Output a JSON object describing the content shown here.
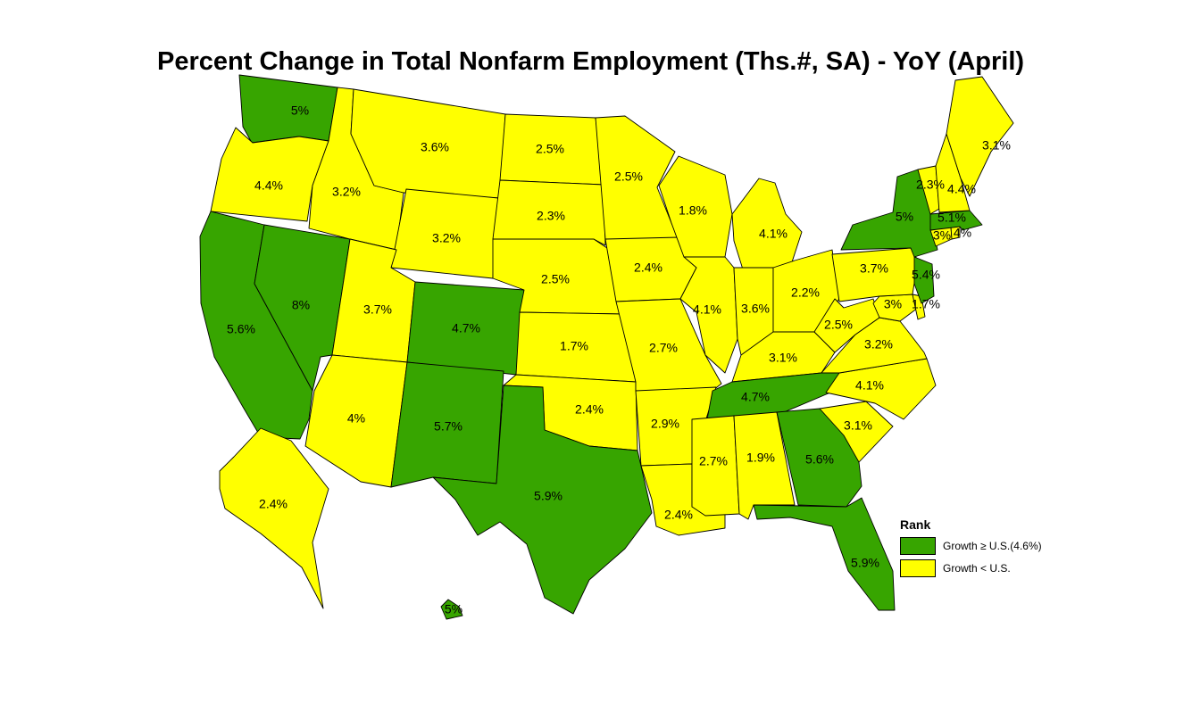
{
  "title": "Percent Change in Total Nonfarm Employment (Ths.#, SA) - YoY (April)",
  "colors": {
    "above": "#37A500",
    "below": "#FFFF00",
    "border": "#000000"
  },
  "legend": {
    "title": "Rank",
    "items": [
      {
        "label": "Growth ≥ U.S.(4.6%)",
        "class": "above"
      },
      {
        "label": "Growth < U.S.",
        "class": "below"
      }
    ]
  },
  "states": [
    {
      "id": "WA",
      "value": "5%",
      "class": "above"
    },
    {
      "id": "OR",
      "value": "4.4%",
      "class": "below"
    },
    {
      "id": "CA",
      "value": "5.6%",
      "class": "above"
    },
    {
      "id": "NV",
      "value": "8%",
      "class": "above"
    },
    {
      "id": "ID",
      "value": "3.2%",
      "class": "below"
    },
    {
      "id": "MT",
      "value": "3.6%",
      "class": "below"
    },
    {
      "id": "WY",
      "value": "3.2%",
      "class": "below"
    },
    {
      "id": "UT",
      "value": "3.7%",
      "class": "below"
    },
    {
      "id": "AZ",
      "value": "4%",
      "class": "below"
    },
    {
      "id": "CO",
      "value": "4.7%",
      "class": "above"
    },
    {
      "id": "NM",
      "value": "5.7%",
      "class": "above"
    },
    {
      "id": "ND",
      "value": "2.5%",
      "class": "below"
    },
    {
      "id": "SD",
      "value": "2.3%",
      "class": "below"
    },
    {
      "id": "NE",
      "value": "2.5%",
      "class": "below"
    },
    {
      "id": "KS",
      "value": "1.7%",
      "class": "below"
    },
    {
      "id": "OK",
      "value": "2.4%",
      "class": "below"
    },
    {
      "id": "TX",
      "value": "5.9%",
      "class": "above"
    },
    {
      "id": "MN",
      "value": "2.5%",
      "class": "below"
    },
    {
      "id": "IA",
      "value": "2.4%",
      "class": "below"
    },
    {
      "id": "MO",
      "value": "2.7%",
      "class": "below"
    },
    {
      "id": "AR",
      "value": "2.9%",
      "class": "below"
    },
    {
      "id": "LA",
      "value": "2.4%",
      "class": "below"
    },
    {
      "id": "WI",
      "value": "1.8%",
      "class": "below"
    },
    {
      "id": "IL",
      "value": "4.1%",
      "class": "below"
    },
    {
      "id": "MI",
      "value": "4.1%",
      "class": "below"
    },
    {
      "id": "IN",
      "value": "3.6%",
      "class": "below"
    },
    {
      "id": "OH",
      "value": "2.2%",
      "class": "below"
    },
    {
      "id": "KY",
      "value": "3.1%",
      "class": "below"
    },
    {
      "id": "TN",
      "value": "4.7%",
      "class": "above"
    },
    {
      "id": "MS",
      "value": "2.7%",
      "class": "below"
    },
    {
      "id": "AL",
      "value": "1.9%",
      "class": "below"
    },
    {
      "id": "GA",
      "value": "5.6%",
      "class": "above"
    },
    {
      "id": "FL",
      "value": "5.9%",
      "class": "above"
    },
    {
      "id": "SC",
      "value": "3.1%",
      "class": "below"
    },
    {
      "id": "NC",
      "value": "4.1%",
      "class": "below"
    },
    {
      "id": "VA",
      "value": "3.2%",
      "class": "below"
    },
    {
      "id": "WV",
      "value": "2.5%",
      "class": "below"
    },
    {
      "id": "MD",
      "value": "3%",
      "class": "below"
    },
    {
      "id": "DE",
      "value": "1.7%",
      "class": "below"
    },
    {
      "id": "PA",
      "value": "3.7%",
      "class": "below"
    },
    {
      "id": "NJ",
      "value": "5.4%",
      "class": "above"
    },
    {
      "id": "NY",
      "value": "5%",
      "class": "above"
    },
    {
      "id": "CT",
      "value": "3%",
      "class": "below"
    },
    {
      "id": "RI",
      "value": "4%",
      "class": "below"
    },
    {
      "id": "MA",
      "value": "5.1%",
      "class": "above"
    },
    {
      "id": "VT",
      "value": "2.3%",
      "class": "below"
    },
    {
      "id": "NH",
      "value": "4.4%",
      "class": "below"
    },
    {
      "id": "ME",
      "value": "3.1%",
      "class": "below"
    },
    {
      "id": "AK",
      "value": "2.4%",
      "class": "below"
    },
    {
      "id": "HI",
      "value": "5%",
      "class": "above"
    }
  ]
}
